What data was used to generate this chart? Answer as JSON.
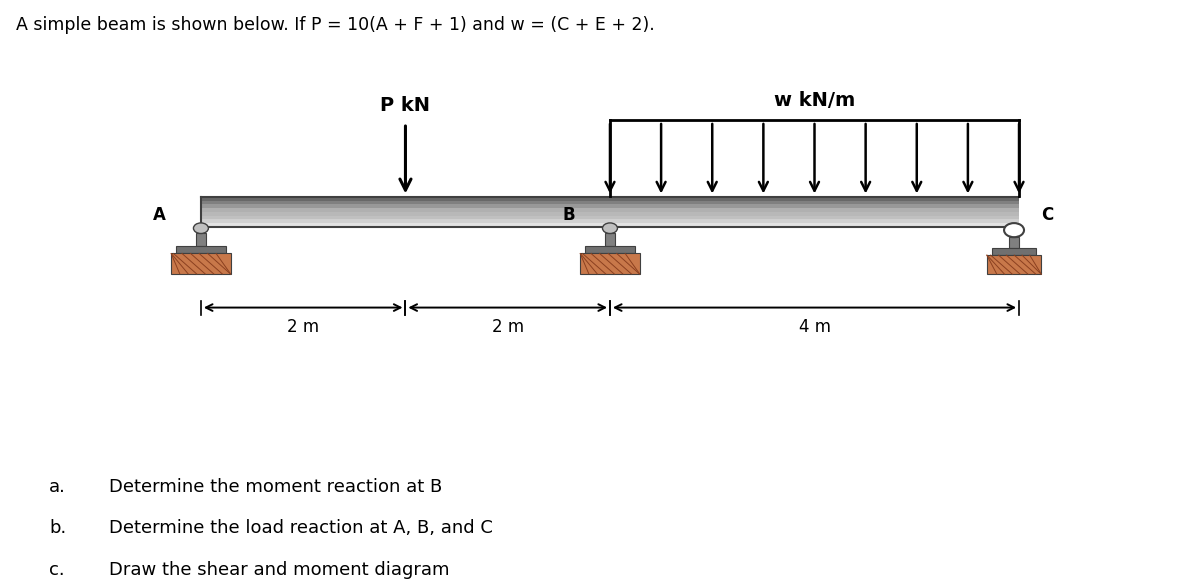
{
  "title_text": "A simple beam is shown below. If P = 10(A + F + 1) and w = (C + E + 2).",
  "label_P": "P kN",
  "label_w": "w kN/m",
  "label_A": "A",
  "label_B": "B",
  "label_C": "C",
  "dim_2m_1": "2 m",
  "dim_2m_2": "2 m",
  "dim_4m": "4 m",
  "bg_color": "#ffffff",
  "beam_gray_light": "#d8d8d8",
  "beam_gray_mid": "#a0a0a0",
  "beam_gray_dark": "#606060",
  "support_terra": "#c8784a",
  "support_dark": "#404040",
  "dist_load_n": 9,
  "q_labels": [
    "a.",
    "b.",
    "c."
  ],
  "q_texts": [
    "Determine the moment reaction at B",
    "Determine the load reaction at A, B, and C",
    "Draw the shear and moment diagram"
  ]
}
